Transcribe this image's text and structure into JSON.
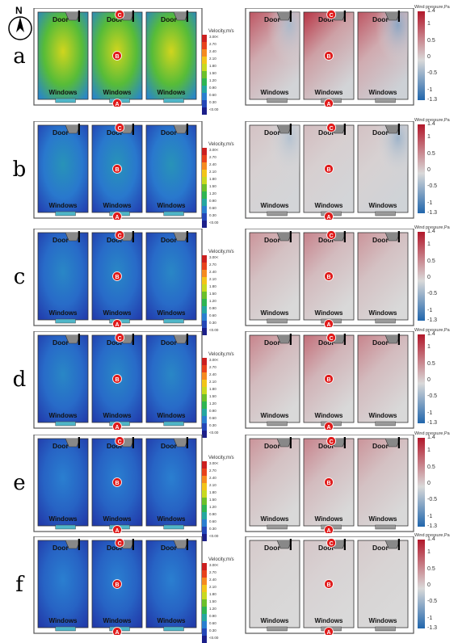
{
  "compass": {
    "label": "N",
    "icon": "north-arrow-icon"
  },
  "labels": {
    "door": "Door",
    "windows": "Windows"
  },
  "markers": [
    "A",
    "B",
    "C"
  ],
  "velocity_legend": {
    "title": "Velocity,m/s",
    "ticks": [
      "3.00<",
      "2.70",
      "2.40",
      "2.10",
      "1.80",
      "1.50",
      "1.20",
      "0.90",
      "0.60",
      "0.30",
      "<0.00"
    ],
    "colors": [
      "#cc1f1f",
      "#e8421c",
      "#f58a1f",
      "#f2c418",
      "#c8d91f",
      "#6cc02a",
      "#2fb552",
      "#25a7a0",
      "#2a7fd0",
      "#2447b8",
      "#1c1f8a"
    ]
  },
  "pressure_legend": {
    "title": "Wind pressure,Pa",
    "ticks": [
      "1.4",
      "1",
      "0.5",
      "0",
      "-0.5",
      "-1",
      "-1.3"
    ],
    "colors": {
      "high": "#b2182b",
      "mid": "#d9d9d9",
      "low": "#2166ac"
    }
  },
  "rows": [
    {
      "label": "a",
      "velocity_level": 0.62,
      "pressure_warm": 0.85,
      "pressure_cool": 0.45,
      "a_pos": "bottom",
      "c_pos": "top"
    },
    {
      "label": "b",
      "velocity_level": 0.25,
      "pressure_warm": 0.15,
      "pressure_cool": 0.35,
      "a_pos": "bottom",
      "c_pos": "top"
    },
    {
      "label": "c",
      "velocity_level": 0.22,
      "pressure_warm": 0.45,
      "pressure_cool": 0.0,
      "a_pos": "bottom",
      "c_pos": "top"
    },
    {
      "label": "d",
      "velocity_level": 0.22,
      "pressure_warm": 0.55,
      "pressure_cool": 0.0,
      "a_pos": "bottom",
      "c_pos": "top"
    },
    {
      "label": "e",
      "velocity_level": 0.2,
      "pressure_warm": 0.45,
      "pressure_cool": 0.0,
      "a_pos": "bottom",
      "c_pos": "top"
    },
    {
      "label": "f",
      "velocity_level": 0.2,
      "pressure_warm": 0.1,
      "pressure_cool": 0.0,
      "a_pos": "bottom",
      "c_pos": "top"
    }
  ]
}
